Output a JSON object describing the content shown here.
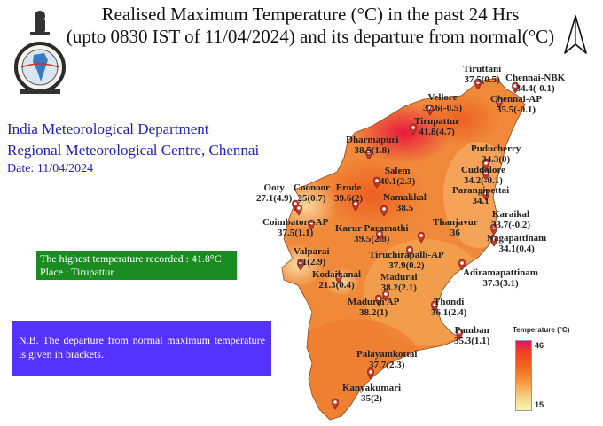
{
  "title": {
    "line1": "Realised Maximum Temperature (°C) in the past 24 Hrs",
    "line2": "(upto 0830 IST of  11/04/2024) and its departure from normal(°C)"
  },
  "org": {
    "line1": "India Meteorological Department",
    "line2": "Regional Meteorological Centre, Chennai",
    "date": "Date: 11/04/2024"
  },
  "highest": {
    "line1": "The highest temperature recorded : 41.8°C",
    "line2": "Place : Tirupattur"
  },
  "note": "N.B. The departure from normal maximum temperature is given in brackets.",
  "legend": {
    "title": "Temperature (°C)",
    "max": "46",
    "min": "15"
  },
  "colors": {
    "hot": "#e2136c",
    "warm": "#f07a2a",
    "mild": "#f5a85a",
    "cool": "#f3f7b4",
    "marker": "#c0392b"
  },
  "stations": [
    {
      "name": "Tiruttani",
      "value": "37.5(0.5)"
    },
    {
      "name": "Chennai-NBK",
      "value": "34.4(-0.1)"
    },
    {
      "name": "Chennai-AP",
      "value": "35.5(-0.1)"
    },
    {
      "name": "Vellore",
      "value": "37.6(-0.5)"
    },
    {
      "name": "Tirupattur",
      "value": "41.8(4.7)"
    },
    {
      "name": "Dharmapuri",
      "value": "38.5(1.8)"
    },
    {
      "name": "Puducherry",
      "value": "34.3(0)"
    },
    {
      "name": "Salem",
      "value": "40.1(2.3)"
    },
    {
      "name": "Cuddalore",
      "value": "34.2(-0.1)"
    },
    {
      "name": "Parangipettai",
      "value": "34.1"
    },
    {
      "name": "Ooty",
      "value": "27.1(4.9)"
    },
    {
      "name": "Coonoor",
      "value": "25(0.7)"
    },
    {
      "name": "Erode",
      "value": "39.6(2)"
    },
    {
      "name": "Namakkal",
      "value": "38.5"
    },
    {
      "name": "Coimbatore-AP",
      "value": "37.5(1.1)"
    },
    {
      "name": "Karur Paramathi",
      "value": "39.5(2.8)"
    },
    {
      "name": "Thanjavur",
      "value": "36"
    },
    {
      "name": "Karaikal",
      "value": "33.7(-0.2)"
    },
    {
      "name": "Nagapattinam",
      "value": "34.1(0.4)"
    },
    {
      "name": "Valparai",
      "value": "31(2.9)"
    },
    {
      "name": "Tiruchirapalli-AP",
      "value": "37.9(0.2)"
    },
    {
      "name": "Adiramapattinam",
      "value": "37.3(3.1)"
    },
    {
      "name": "Kodaikanal",
      "value": "21.3(0.4)"
    },
    {
      "name": "Madurai",
      "value": "38.2(2.1)"
    },
    {
      "name": "Madurai AP",
      "value": "38.2(1)"
    },
    {
      "name": "Thondi",
      "value": "36.1(2.4)"
    },
    {
      "name": "Pamban",
      "value": "35.3(1.1)"
    },
    {
      "name": "Palayamkottai",
      "value": "37.7(2.3)"
    },
    {
      "name": "Kanyakumari",
      "value": "35(2)"
    }
  ]
}
